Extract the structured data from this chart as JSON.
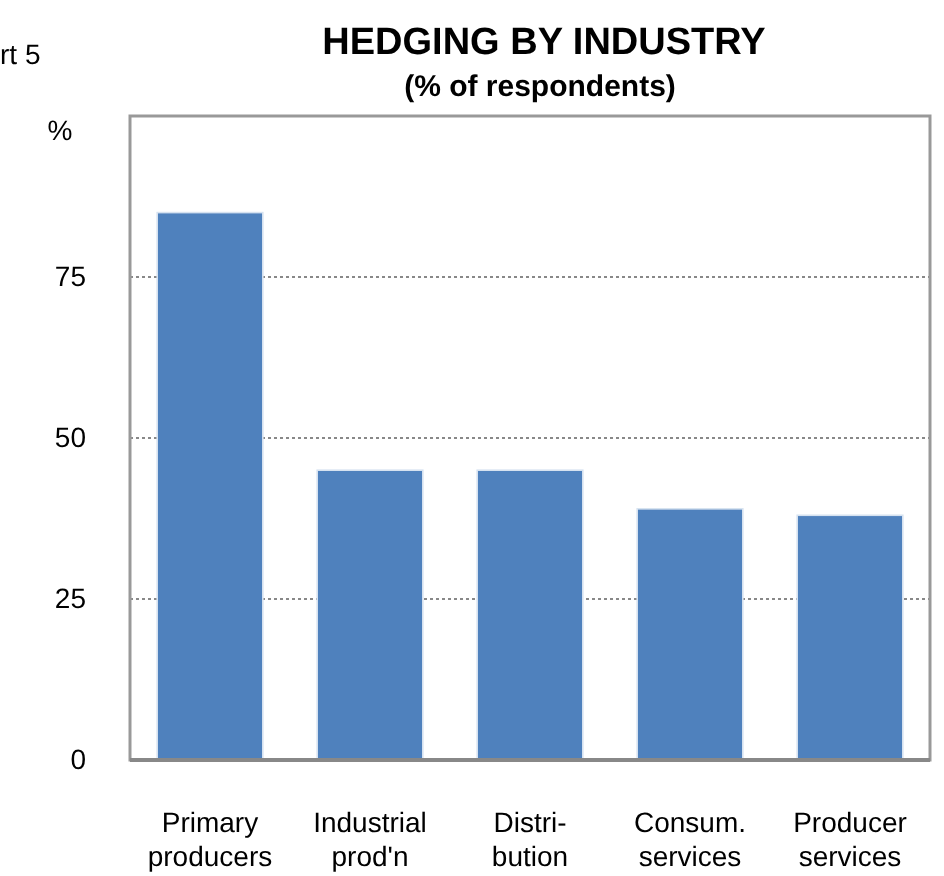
{
  "chart_data": {
    "type": "bar",
    "title": "HEDGING BY INDUSTRY",
    "subtitle": "(% of respondents)",
    "ylabel": "%",
    "annotations": [
      "rt 5"
    ],
    "categories": [
      "Primary\nproducers",
      "Industrial\nprod'n",
      "Distri-\nbution",
      "Consum.\nservices",
      "Producer\nservices"
    ],
    "values": [
      85,
      45,
      45,
      39,
      38
    ],
    "color": "#4f81bd",
    "ylim": [
      0,
      100
    ],
    "yticks": [
      0,
      25,
      50,
      75
    ],
    "grid": "y"
  }
}
